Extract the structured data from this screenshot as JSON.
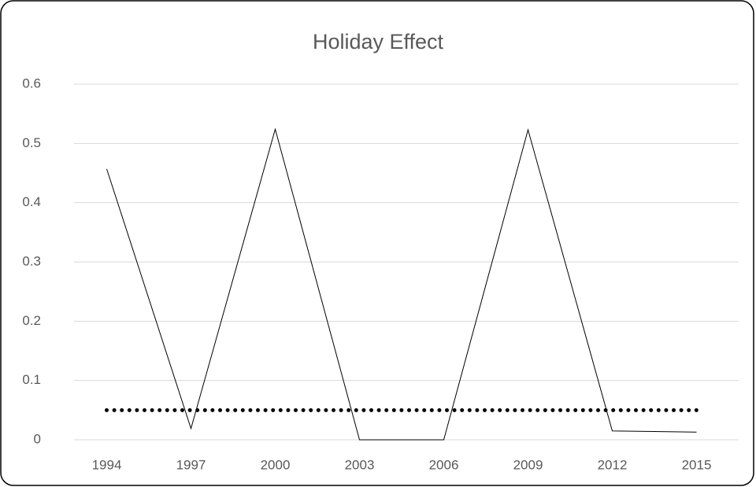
{
  "chart_data": {
    "type": "line",
    "title": "Holiday Effect",
    "categories": [
      "1994",
      "1997",
      "2000",
      "2003",
      "2006",
      "2009",
      "2012",
      "2015"
    ],
    "series": [
      {
        "color": "#000000",
        "style": "solid",
        "values": [
          0.457,
          0.019,
          0.524,
          0,
          0,
          0.523,
          0.015,
          0.013
        ]
      },
      {
        "color": "#000000",
        "style": "dotted",
        "values": [
          0.05,
          0.05,
          0.05,
          0.05,
          0.05,
          0.05,
          0.05,
          0.05
        ]
      }
    ],
    "ylim": [
      0,
      0.6
    ],
    "yticks": [
      0,
      0.1,
      0.2,
      0.3,
      0.4,
      0.5,
      0.6
    ],
    "grid": true
  }
}
